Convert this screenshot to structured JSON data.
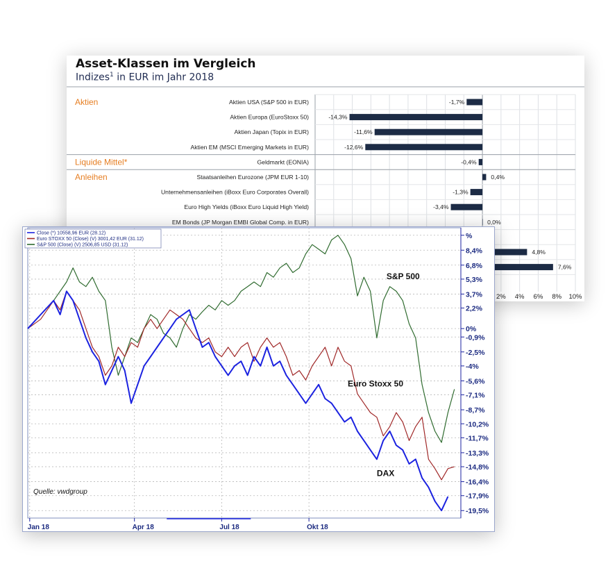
{
  "colors": {
    "accent": "#e67e22",
    "bar": "#1c2b45",
    "sp500": "#2f6b2f",
    "stoxx": "#a02828",
    "dax": "#1b22e0"
  },
  "top_chart": {
    "title": "Asset-Klassen im Vergleich",
    "subtitle_pre": "Indizes",
    "subtitle_sup": "1",
    "subtitle_post": " in EUR im Jahr 2018",
    "groups": [
      {
        "label": "Aktien",
        "first_row": 0
      },
      {
        "label": "Liquide Mittel*",
        "first_row": 4
      },
      {
        "label": "Anleihen",
        "first_row": 5
      }
    ],
    "rows": [
      {
        "label": "Aktien USA (S&P 500 in EUR)",
        "value": -1.7,
        "value_label": "-1,7%"
      },
      {
        "label": "Aktien Europa (EuroStoxx 50)",
        "value": -14.3,
        "value_label": "-14,3%"
      },
      {
        "label": "Aktien Japan (Topix in EUR)",
        "value": -11.6,
        "value_label": "-11,6%"
      },
      {
        "label": "Aktien EM (MSCI Emerging Markets in EUR)",
        "value": -12.6,
        "value_label": "-12,6%"
      },
      {
        "label": "Geldmarkt (EONIA)",
        "value": -0.4,
        "value_label": "-0,4%"
      },
      {
        "label": "Staatsanleihen Eurozone (JPM EUR 1-10)",
        "value": 0.4,
        "value_label": "0,4%"
      },
      {
        "label": "Unternehmensanleihen (iBoxx Euro Corporates Overall)",
        "value": -1.3,
        "value_label": "-1,3%"
      },
      {
        "label": "Euro High Yields (iBoxx Euro Liquid High Yield)",
        "value": -3.4,
        "value_label": "-3,4%"
      },
      {
        "label": "EM Bonds (JP Morgan EMBI Global Comp. in EUR)",
        "value": 0.0,
        "value_label": "0,0%"
      },
      {
        "label": "",
        "value": null,
        "value_label": ""
      },
      {
        "label": "",
        "value": 4.8,
        "value_label": "4,8%"
      },
      {
        "label": "",
        "value": 7.6,
        "value_label": "7,6%"
      }
    ],
    "visible_ticks": [
      "2%",
      "4%",
      "6%",
      "8%",
      "10%"
    ]
  },
  "chart_data": [
    {
      "type": "bar",
      "title": "Asset-Klassen im Vergleich",
      "subtitle": "Indizes¹ in EUR im Jahr 2018",
      "orientation": "horizontal",
      "categories": [
        "Aktien USA (S&P 500 in EUR)",
        "Aktien Europa (EuroStoxx 50)",
        "Aktien Japan (Topix in EUR)",
        "Aktien EM (MSCI Emerging Markets in EUR)",
        "Geldmarkt (EONIA)",
        "Staatsanleihen Eurozone (JPM EUR 1-10)",
        "Unternehmensanleihen (iBoxx Euro Corporates Overall)",
        "Euro High Yields (iBoxx Euro Liquid High Yield)",
        "EM Bonds (JP Morgan EMBI Global Comp. in EUR)"
      ],
      "values": [
        -1.7,
        -14.3,
        -11.6,
        -12.6,
        -0.4,
        0.4,
        -1.3,
        -3.4,
        0.0
      ],
      "partially_hidden_values": [
        4.8,
        7.6
      ],
      "xlim": [
        -18,
        10
      ],
      "grid": true
    },
    {
      "type": "line",
      "xlabel": "",
      "ylabel": "",
      "x_ticks": [
        "Jan 18",
        "Apr 18",
        "Jul 18",
        "Okt 18"
      ],
      "y_ticks": [
        "%",
        "8,4%",
        "6,8%",
        "5,3%",
        "3,7%",
        "2,2%",
        "0%",
        "-0,9%",
        "-2,5%",
        "-4%",
        "-5,6%",
        "-7,1%",
        "-8,7%",
        "-10,2%",
        "-11,7%",
        "-13,3%",
        "-14,8%",
        "-16,4%",
        "-17,9%",
        "-19,5%"
      ],
      "ylim": [
        -20.3,
        10.8
      ],
      "legend": [
        "Close (*) 10558,96 EUR (28.12)",
        "Euro STOXX 50 (Close) (V) 3001,42 EUR (31.12)",
        "S&P 500 (Close) (V) 2506,85 USD (31.12)"
      ],
      "legend_position": "top-left",
      "annotations": [
        "S&P 500",
        "Euro Stoxx 50",
        "DAX",
        "Quelle: vwdgroup"
      ],
      "grid": true,
      "series": [
        {
          "name": "S&P 500",
          "color": "#2f6b2f",
          "points": [
            [
              0,
              0
            ],
            [
              2,
              1.5
            ],
            [
              4,
              3
            ],
            [
              6,
              5
            ],
            [
              7,
              6.5
            ],
            [
              8,
              5
            ],
            [
              9,
              4.5
            ],
            [
              10,
              5.5
            ],
            [
              11,
              4
            ],
            [
              12,
              3
            ],
            [
              13,
              -2
            ],
            [
              14,
              -5
            ],
            [
              15,
              -3
            ],
            [
              16,
              -1
            ],
            [
              17,
              -1.5
            ],
            [
              18,
              0
            ],
            [
              19,
              1.5
            ],
            [
              20,
              1
            ],
            [
              21,
              -0.5
            ],
            [
              22,
              -1
            ],
            [
              23,
              -2
            ],
            [
              24,
              0
            ],
            [
              25,
              1.5
            ],
            [
              26,
              1
            ],
            [
              27,
              1.8
            ],
            [
              28,
              2.5
            ],
            [
              29,
              2
            ],
            [
              30,
              3
            ],
            [
              31,
              2.5
            ],
            [
              32,
              3
            ],
            [
              33,
              4
            ],
            [
              34,
              4.5
            ],
            [
              35,
              5
            ],
            [
              36,
              4.5
            ],
            [
              37,
              6
            ],
            [
              38,
              5.5
            ],
            [
              39,
              6.5
            ],
            [
              40,
              7
            ],
            [
              41,
              6
            ],
            [
              42,
              6.5
            ],
            [
              43,
              8
            ],
            [
              44,
              9
            ],
            [
              45,
              8.5
            ],
            [
              46,
              8
            ],
            [
              47,
              9.5
            ],
            [
              48,
              10
            ],
            [
              49,
              9
            ],
            [
              50,
              7.5
            ],
            [
              51,
              3.5
            ],
            [
              52,
              5.5
            ],
            [
              53,
              4
            ],
            [
              54,
              -1
            ],
            [
              55,
              3
            ],
            [
              56,
              4.5
            ],
            [
              57,
              4
            ],
            [
              58,
              3
            ],
            [
              59,
              0.5
            ],
            [
              60,
              -1
            ],
            [
              61,
              -6
            ],
            [
              62,
              -9
            ],
            [
              63,
              -11
            ],
            [
              64,
              -12.2
            ],
            [
              65,
              -9
            ],
            [
              66,
              -6.5
            ]
          ]
        },
        {
          "name": "Euro STOXX 50",
          "color": "#a02828",
          "points": [
            [
              0,
              0
            ],
            [
              2,
              1
            ],
            [
              4,
              3
            ],
            [
              5,
              2
            ],
            [
              6,
              4
            ],
            [
              7,
              3
            ],
            [
              8,
              2
            ],
            [
              9,
              0
            ],
            [
              10,
              -2
            ],
            [
              11,
              -3
            ],
            [
              12,
              -5
            ],
            [
              13,
              -4
            ],
            [
              14,
              -2
            ],
            [
              15,
              -3
            ],
            [
              16,
              -1.5
            ],
            [
              17,
              -2
            ],
            [
              18,
              0
            ],
            [
              19,
              1
            ],
            [
              20,
              0
            ],
            [
              21,
              1
            ],
            [
              22,
              2
            ],
            [
              23,
              1.5
            ],
            [
              24,
              1
            ],
            [
              25,
              0
            ],
            [
              26,
              -1
            ],
            [
              27,
              -1.5
            ],
            [
              28,
              -1
            ],
            [
              29,
              -2.5
            ],
            [
              30,
              -3
            ],
            [
              31,
              -2
            ],
            [
              32,
              -3
            ],
            [
              33,
              -2
            ],
            [
              34,
              -1.5
            ],
            [
              35,
              -3.5
            ],
            [
              36,
              -2
            ],
            [
              37,
              -1
            ],
            [
              38,
              -2
            ],
            [
              39,
              -1.5
            ],
            [
              40,
              -3
            ],
            [
              41,
              -5
            ],
            [
              42,
              -4.5
            ],
            [
              43,
              -5.5
            ],
            [
              44,
              -4
            ],
            [
              45,
              -3
            ],
            [
              46,
              -2
            ],
            [
              47,
              -4
            ],
            [
              48,
              -2
            ],
            [
              49,
              -3.5
            ],
            [
              50,
              -4
            ],
            [
              51,
              -7
            ],
            [
              52,
              -8
            ],
            [
              53,
              -9
            ],
            [
              54,
              -9.5
            ],
            [
              55,
              -11.5
            ],
            [
              56,
              -10.5
            ],
            [
              57,
              -9
            ],
            [
              58,
              -10
            ],
            [
              59,
              -12
            ],
            [
              60,
              -10.5
            ],
            [
              61,
              -9.5
            ],
            [
              62,
              -14
            ],
            [
              63,
              -15
            ],
            [
              64,
              -16.2
            ],
            [
              65,
              -15
            ],
            [
              66,
              -14.8
            ]
          ]
        },
        {
          "name": "DAX",
          "color": "#1b22e0",
          "points": [
            [
              0,
              0
            ],
            [
              2,
              1.5
            ],
            [
              4,
              3
            ],
            [
              5,
              1.5
            ],
            [
              6,
              4
            ],
            [
              7,
              3
            ],
            [
              8,
              1
            ],
            [
              9,
              -1
            ],
            [
              10,
              -2.5
            ],
            [
              11,
              -3.5
            ],
            [
              12,
              -6
            ],
            [
              13,
              -4.5
            ],
            [
              14,
              -3
            ],
            [
              15,
              -4.5
            ],
            [
              16,
              -8
            ],
            [
              17,
              -6
            ],
            [
              18,
              -4
            ],
            [
              19,
              -3
            ],
            [
              20,
              -2
            ],
            [
              21,
              -1
            ],
            [
              22,
              0
            ],
            [
              23,
              1
            ],
            [
              24,
              1.5
            ],
            [
              25,
              2
            ],
            [
              26,
              0
            ],
            [
              27,
              -2
            ],
            [
              28,
              -1.5
            ],
            [
              29,
              -3
            ],
            [
              30,
              -4
            ],
            [
              31,
              -5
            ],
            [
              32,
              -4
            ],
            [
              33,
              -3.5
            ],
            [
              34,
              -5
            ],
            [
              35,
              -3
            ],
            [
              36,
              -4
            ],
            [
              37,
              -2
            ],
            [
              38,
              -4
            ],
            [
              39,
              -3.5
            ],
            [
              40,
              -5
            ],
            [
              41,
              -6
            ],
            [
              42,
              -7
            ],
            [
              43,
              -8
            ],
            [
              44,
              -7
            ],
            [
              45,
              -6
            ],
            [
              46,
              -7.5
            ],
            [
              47,
              -8
            ],
            [
              48,
              -9
            ],
            [
              49,
              -10
            ],
            [
              50,
              -9.5
            ],
            [
              51,
              -11
            ],
            [
              52,
              -12
            ],
            [
              53,
              -13
            ],
            [
              54,
              -14
            ],
            [
              55,
              -12
            ],
            [
              56,
              -11
            ],
            [
              57,
              -12.5
            ],
            [
              58,
              -13
            ],
            [
              59,
              -14.5
            ],
            [
              60,
              -14
            ],
            [
              61,
              -16
            ],
            [
              62,
              -17
            ],
            [
              63,
              -18.5
            ],
            [
              64,
              -19.5
            ],
            [
              65,
              -18
            ]
          ]
        }
      ]
    }
  ]
}
